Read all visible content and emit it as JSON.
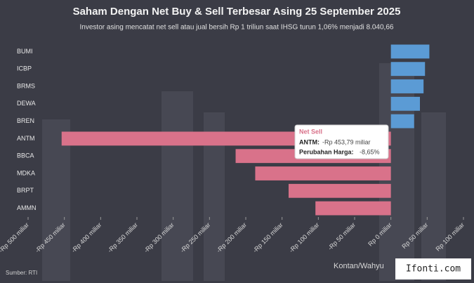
{
  "chart_data": {
    "type": "hbar",
    "title": "Saham Dengan Net Buy & Sell Terbesar Asing 25 September 2025",
    "subtitle": "Investor asing mencatat net sell atau jual bersih Rp 1 triliun saat IHSG turun 1,06% menjadi 8.040,66",
    "categories": [
      "BUMI",
      "ICBP",
      "BRMS",
      "DEWA",
      "BREN",
      "ANTM",
      "BBCA",
      "MDKA",
      "BRPT",
      "AMMN"
    ],
    "values": [
      53,
      47,
      45,
      40,
      32,
      -453.79,
      -214,
      -187,
      -141,
      -104
    ],
    "positive_color": "#5b9bd5",
    "negative_color": "#d9728a",
    "xlim": [
      -500,
      100
    ],
    "xticks": [
      {
        "value": -500,
        "label": "-Rp 500 miliar"
      },
      {
        "value": -450,
        "label": "-Rp 450 miliar"
      },
      {
        "value": -400,
        "label": "-Rp 400 miliar"
      },
      {
        "value": -350,
        "label": "-Rp 350 miliar"
      },
      {
        "value": -300,
        "label": "-Rp 300 miliar"
      },
      {
        "value": -250,
        "label": "-Rp 250 miliar"
      },
      {
        "value": -200,
        "label": "-Rp 200 miliar"
      },
      {
        "value": -150,
        "label": "-Rp 150 miliar"
      },
      {
        "value": -100,
        "label": "-Rp 100 miliar"
      },
      {
        "value": -50,
        "label": "-Rp 50 miliar"
      },
      {
        "value": 0,
        "label": "Rp 0 miliar"
      },
      {
        "value": 50,
        "label": "Rp 50 miliar"
      },
      {
        "value": 100,
        "label": "Rp 100 miliar"
      }
    ],
    "tooltip": {
      "title": "Net Sell",
      "label": "ANTM:",
      "value": "-Rp 453,79 miliar",
      "label2": "Perubahan Harga:",
      "value2": "-8,65%"
    },
    "source": "Sumber: RTI",
    "credit": "Kontan/Wahyu",
    "watermark": "Ifonti.com"
  }
}
